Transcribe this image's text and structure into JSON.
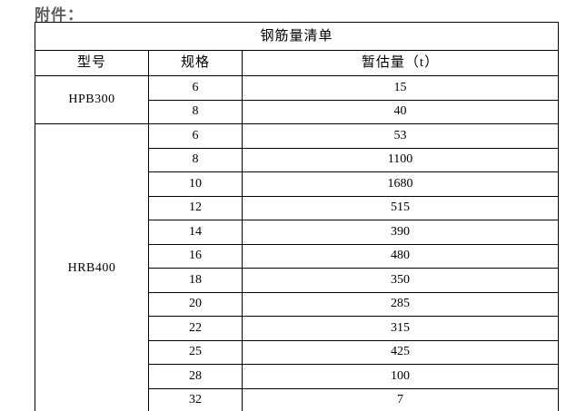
{
  "page": {
    "attachment_label": "附件："
  },
  "steel_table": {
    "title": "钢筋量清单",
    "columns": {
      "model": "型号",
      "spec": "规格",
      "estimate": "暂估量（t）"
    },
    "groups": [
      {
        "model": "HPB300",
        "rows": [
          {
            "spec": "6",
            "estimate": "15"
          },
          {
            "spec": "8",
            "estimate": "40"
          }
        ]
      },
      {
        "model": "HRB400",
        "rows": [
          {
            "spec": "6",
            "estimate": "53"
          },
          {
            "spec": "8",
            "estimate": "1100"
          },
          {
            "spec": "10",
            "estimate": "1680"
          },
          {
            "spec": "12",
            "estimate": "515"
          },
          {
            "spec": "14",
            "estimate": "390"
          },
          {
            "spec": "16",
            "estimate": "480"
          },
          {
            "spec": "18",
            "estimate": "350"
          },
          {
            "spec": "20",
            "estimate": "285"
          },
          {
            "spec": "22",
            "estimate": "315"
          },
          {
            "spec": "25",
            "estimate": "425"
          },
          {
            "spec": "28",
            "estimate": "100"
          },
          {
            "spec": "32",
            "estimate": "7"
          }
        ]
      }
    ]
  }
}
